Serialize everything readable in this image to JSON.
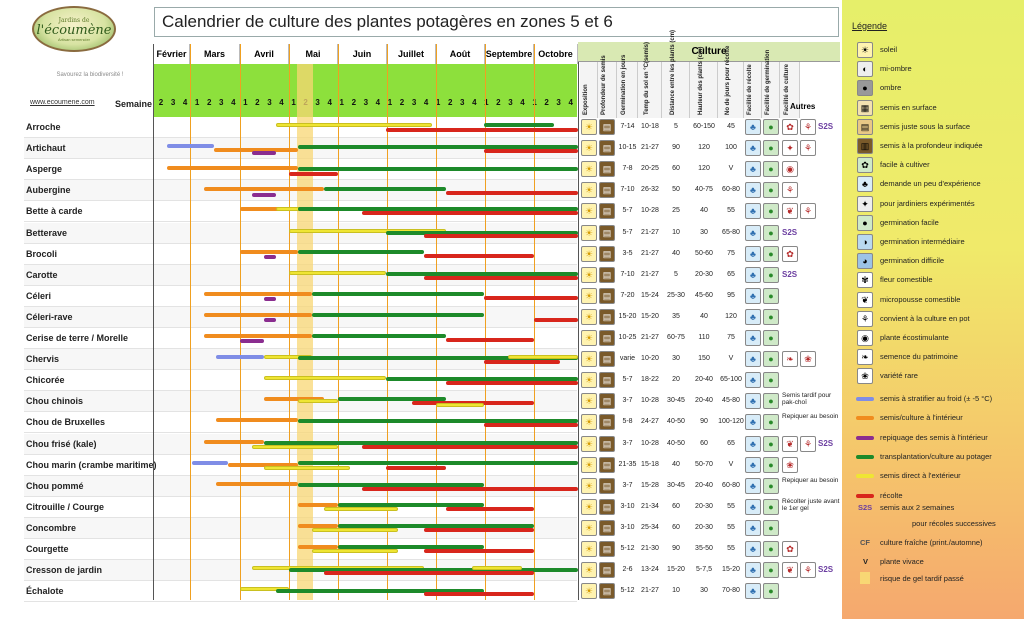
{
  "logo": {
    "line1": "Jardins de",
    "line2": "l'écoumène",
    "line3": "Artisan semencier"
  },
  "tagline": "Savourez la biodiversité !",
  "website": "www.ecoumene.com",
  "semaine_label": "Semaine",
  "title": "Calendrier de culture des plantes potagères en zones 5 et 6",
  "culture_header": "Culture",
  "months": [
    "Février",
    "Mars",
    "Avril",
    "Mai",
    "Juin",
    "Juillet",
    "Août",
    "Septembre",
    "Octobre"
  ],
  "weeks": [
    "2",
    "3",
    "4",
    "1",
    "2",
    "3",
    "4",
    "1",
    "2",
    "3",
    "4",
    "1",
    "2",
    "3",
    "4",
    "1",
    "2",
    "3",
    "4",
    "1",
    "2",
    "3",
    "4",
    "1",
    "2",
    "3",
    "4",
    "1",
    "2",
    "3",
    "4",
    "1",
    "2",
    "3",
    "4"
  ],
  "column_headers": [
    "Exposition",
    "Profondeur de semis",
    "Germination en jours",
    "Temp du sol en °C(semis)",
    "Distance entre les plants (cm)",
    "Hauteur des plants (cm)",
    "No de jours pour récolte",
    "Facilité de récolte",
    "Facilité de germination",
    "Facilité de culture"
  ],
  "autres_label": "Autres",
  "plants": [
    {
      "name": "Arroche",
      "germ": "7-14",
      "temp": "10-18",
      "dist": "5",
      "haut": "60-150",
      "jours": "45",
      "autres": [
        "fleur",
        "pot",
        "S2S"
      ]
    },
    {
      "name": "Artichaut",
      "germ": "10-15",
      "temp": "21-27",
      "dist": "90",
      "haut": "120",
      "jours": "100",
      "autres": [
        "expert",
        "pot"
      ]
    },
    {
      "name": "Asperge",
      "germ": "7-8",
      "temp": "20-25",
      "dist": "60",
      "haut": "120",
      "jours": "V",
      "autres": [
        "stimulante"
      ]
    },
    {
      "name": "Aubergine",
      "germ": "7-10",
      "temp": "26-32",
      "dist": "50",
      "haut": "40-75",
      "jours": "60-80",
      "autres": [
        "pot"
      ]
    },
    {
      "name": "Bette à carde",
      "germ": "5-7",
      "temp": "10-28",
      "dist": "25",
      "haut": "40",
      "jours": "55",
      "autres": [
        "micro",
        "pot"
      ]
    },
    {
      "name": "Betterave",
      "germ": "5-7",
      "temp": "21-27",
      "dist": "10",
      "haut": "30",
      "jours": "65-80",
      "autres": [
        "S2S"
      ]
    },
    {
      "name": "Brocoli",
      "germ": "3-5",
      "temp": "21-27",
      "dist": "40",
      "haut": "50-60",
      "jours": "75",
      "autres": [
        "fleur"
      ]
    },
    {
      "name": "Carotte",
      "germ": "7-10",
      "temp": "21-27",
      "dist": "5",
      "haut": "20-30",
      "jours": "65",
      "autres": [
        "S2S"
      ]
    },
    {
      "name": "Céleri",
      "germ": "7-20",
      "temp": "15-24",
      "dist": "25-30",
      "haut": "45-60",
      "jours": "95",
      "autres": []
    },
    {
      "name": "Céleri-rave",
      "germ": "15-20",
      "temp": "15-20",
      "dist": "35",
      "haut": "40",
      "jours": "120",
      "autres": []
    },
    {
      "name": "Cerise de terre / Morelle",
      "germ": "10-25",
      "temp": "21-27",
      "dist": "60-75",
      "haut": "110",
      "jours": "75",
      "autres": []
    },
    {
      "name": "Chervis",
      "germ": "varie",
      "temp": "10-20",
      "dist": "30",
      "haut": "150",
      "jours": "V",
      "autres": [
        "patrimoine",
        "rare"
      ]
    },
    {
      "name": "Chicorée",
      "germ": "5-7",
      "temp": "18-22",
      "dist": "20",
      "haut": "20-40",
      "jours": "65-100",
      "autres": []
    },
    {
      "name": "Chou chinois",
      "germ": "3-7",
      "temp": "10-28",
      "dist": "30-45",
      "haut": "20-40",
      "jours": "45-80",
      "note": "Semis tardif pour pak-choï",
      "autres": []
    },
    {
      "name": "Chou de Bruxelles",
      "germ": "5-8",
      "temp": "24-27",
      "dist": "40-50",
      "haut": "90",
      "jours": "100-120",
      "note": "Repiquer au besoin",
      "autres": []
    },
    {
      "name": "Chou frisé (kale)",
      "germ": "3-7",
      "temp": "10-28",
      "dist": "40-50",
      "haut": "60",
      "jours": "65",
      "autres": [
        "micro",
        "pot",
        "S2S"
      ]
    },
    {
      "name": "Chou marin (crambe maritime)",
      "germ": "21-35",
      "temp": "15-18",
      "dist": "40",
      "haut": "50-70",
      "jours": "V",
      "autres": [
        "rare"
      ]
    },
    {
      "name": "Chou pommé",
      "germ": "3-7",
      "temp": "15-28",
      "dist": "30-45",
      "haut": "20-40",
      "jours": "60-80",
      "note": "Repiquer au besoin",
      "autres": []
    },
    {
      "name": "Citrouille / Courge",
      "germ": "3-10",
      "temp": "21-34",
      "dist": "60",
      "haut": "20-30",
      "jours": "55",
      "note": "Récolter juste avant le 1er gel",
      "autres": []
    },
    {
      "name": "Concombre",
      "germ": "3-10",
      "temp": "25-34",
      "dist": "60",
      "haut": "20-30",
      "jours": "55",
      "autres": []
    },
    {
      "name": "Courgette",
      "germ": "5-12",
      "temp": "21-30",
      "dist": "90",
      "haut": "35-50",
      "jours": "55",
      "autres": [
        "fleur"
      ]
    },
    {
      "name": "Cresson de jardin",
      "germ": "2-6",
      "temp": "13-24",
      "dist": "15-20",
      "haut": "5-7,5",
      "jours": "15-20",
      "autres": [
        "micro",
        "pot",
        "S2S"
      ]
    },
    {
      "name": "Échalote",
      "germ": "5-12",
      "temp": "21-27",
      "dist": "10",
      "haut": "30",
      "jours": "70-80",
      "autres": []
    }
  ],
  "legend": {
    "title": "Légende",
    "icons": [
      {
        "icon": "sun-icon",
        "label": "soleil"
      },
      {
        "icon": "half-shade-icon",
        "label": "mi-ombre"
      },
      {
        "icon": "shade-icon",
        "label": "ombre"
      },
      {
        "icon": "surface-seed-icon",
        "label": "semis en surface"
      },
      {
        "icon": "shallow-seed-icon",
        "label": "semis juste sous la surface"
      },
      {
        "icon": "depth-seed-icon",
        "label": "semis à la profondeur indiquée"
      },
      {
        "icon": "easy-grow-icon",
        "label": "facile à cultiver"
      },
      {
        "icon": "some-experience-icon",
        "label": "demande un peu d'expérience"
      },
      {
        "icon": "expert-icon",
        "label": "pour jardiniers expérimentés"
      },
      {
        "icon": "easy-germ-icon",
        "label": "germination facile"
      },
      {
        "icon": "mid-germ-icon",
        "label": "germination intermédiaire"
      },
      {
        "icon": "hard-germ-icon",
        "label": "germination difficile"
      },
      {
        "icon": "edible-flower-icon",
        "label": "fleur comestible"
      },
      {
        "icon": "microgreen-icon",
        "label": "micropousse comestible"
      },
      {
        "icon": "pot-icon",
        "label": "convient à la culture en pot"
      },
      {
        "icon": "ecostimulant-icon",
        "label": "plante écostimulante"
      },
      {
        "icon": "heritage-icon",
        "label": "semence du patrimoine"
      },
      {
        "icon": "rare-icon",
        "label": "variété rare"
      }
    ],
    "bars": [
      {
        "color": "#7f8de6",
        "label": "semis à stratifier au froid (± -5 °C)"
      },
      {
        "color": "#f08c1e",
        "label": "semis/culture à l'intérieur"
      },
      {
        "color": "#8a2d8f",
        "label": "repiquage des semis à l'intérieur"
      },
      {
        "color": "#1d8a2a",
        "label": "transplantation/culture au potager"
      },
      {
        "color": "#efe533",
        "label": "semis direct à l'extérieur"
      },
      {
        "color": "#d8261c",
        "label": "récolte"
      }
    ],
    "s2s_code": "S2S",
    "s2s_label": "semis aux 2 semaines",
    "s2s_label2": "pour récoles successives",
    "cf_code": "CF",
    "cf_label": "culture fraîche (print./automne)",
    "v_code": "V",
    "v_label": "plante vivace",
    "frost_label": "risque de gel tardif passé"
  }
}
